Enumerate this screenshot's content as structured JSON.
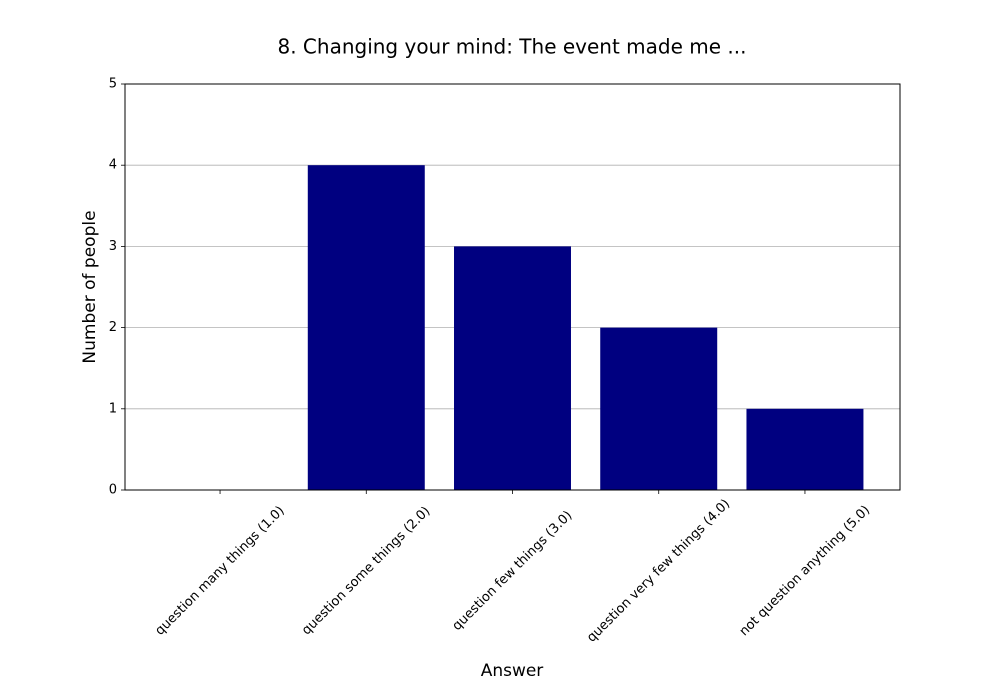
{
  "chart_data": {
    "type": "bar",
    "title": "8. Changing your mind: The event made me ...",
    "x_label": "Answer",
    "y_label": "Number of people",
    "categories": [
      "question many things (1.0)",
      "question some things (2.0)",
      "question few things (3.0)",
      "question very few things (4.0)",
      "not question anything (5.0)"
    ],
    "values": [
      0,
      4,
      3,
      2,
      1
    ],
    "color": "#000080",
    "ylim": [
      0,
      5
    ],
    "yticks": [
      0,
      1,
      2,
      3,
      4,
      5
    ],
    "grid": true
  }
}
